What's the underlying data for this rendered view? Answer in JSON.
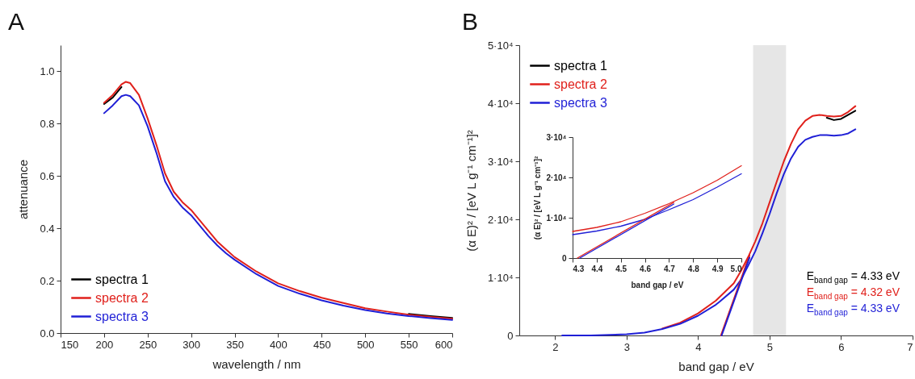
{
  "chart_data": [
    {
      "type": "line",
      "title": "A",
      "xlabel": "wavelength / nm",
      "ylabel": "attenuance",
      "xlim": [
        150,
        600
      ],
      "ylim": [
        0,
        1.1
      ],
      "xticks": [
        150,
        200,
        250,
        300,
        350,
        400,
        450,
        500,
        550,
        600
      ],
      "yticks": [
        {
          "value": 0,
          "label": "0.0"
        },
        0.2,
        0.4,
        0.6,
        0.8,
        {
          "value": 1,
          "label": "1.0"
        }
      ],
      "grid": false,
      "legend": "bottom left",
      "x": [
        200,
        210,
        220,
        225,
        230,
        240,
        250,
        260,
        270,
        280,
        290,
        300,
        310,
        320,
        330,
        340,
        350,
        375,
        400,
        425,
        450,
        475,
        500,
        525,
        550,
        575,
        600
      ],
      "series": [
        {
          "name": "spectra 1",
          "color": "#000000",
          "values": [
            0.875,
            0.9,
            0.94,
            null,
            null,
            null,
            null,
            null,
            null,
            null,
            null,
            null,
            null,
            null,
            null,
            null,
            null,
            null,
            null,
            null,
            null,
            null,
            null,
            null,
            0.073,
            0.065,
            0.058
          ]
        },
        {
          "name": "spectra 2",
          "color": "#e0201b",
          "values": [
            0.88,
            0.91,
            0.95,
            0.96,
            0.955,
            0.91,
            0.82,
            0.72,
            0.61,
            0.54,
            0.5,
            0.47,
            0.43,
            0.39,
            0.35,
            0.32,
            0.29,
            0.235,
            0.19,
            0.16,
            0.135,
            0.115,
            0.095,
            0.082,
            0.07,
            0.062,
            0.055
          ]
        },
        {
          "name": "spectra 3",
          "color": "#1f1fd6",
          "values": [
            0.84,
            0.87,
            0.905,
            0.91,
            0.905,
            0.87,
            0.79,
            0.69,
            0.58,
            0.52,
            0.48,
            0.45,
            0.41,
            0.37,
            0.335,
            0.305,
            0.28,
            0.225,
            0.18,
            0.15,
            0.125,
            0.105,
            0.088,
            0.075,
            0.065,
            0.057,
            0.05
          ]
        }
      ]
    },
    {
      "type": "line",
      "title": "B",
      "xlabel": "band gap / eV",
      "ylabel": "(α E)² / [eV L g⁻¹ cm⁻¹]²",
      "xlim": [
        1.5,
        7
      ],
      "ylim": [
        0,
        50000
      ],
      "xticks": [
        2,
        3,
        4,
        5,
        6,
        7
      ],
      "yticks": [
        0,
        {
          "value": 10000,
          "label": "1·10⁴"
        },
        {
          "value": 20000,
          "label": "2·10⁴"
        },
        {
          "value": 30000,
          "label": "3·10⁴"
        },
        {
          "value": 40000,
          "label": "4·10⁴"
        },
        {
          "value": 50000,
          "label": "5·10⁴"
        }
      ],
      "grid": false,
      "legend": "top left",
      "bands": [
        {
          "axis": "x",
          "from": 4.77,
          "to": 5.23,
          "color": "#e6e6e6"
        }
      ],
      "annotations": [
        "E$_{band gap}$ = 4.33 eV",
        "E$_{band gap}$ = 4.32 eV",
        "E$_{band gap}$ = 4.33 eV"
      ],
      "x": [
        2.1,
        2.5,
        3,
        3.25,
        3.5,
        3.75,
        4,
        4.25,
        4.3,
        4.5,
        4.6,
        4.7,
        4.8,
        4.9,
        5,
        5.1,
        5.2,
        5.3,
        5.4,
        5.5,
        5.6,
        5.7,
        5.8,
        5.9,
        6,
        6.1,
        6.2
      ],
      "series": [
        {
          "name": "spectra 1",
          "color": "#000000",
          "values": [
            null,
            null,
            null,
            null,
            null,
            null,
            null,
            null,
            null,
            null,
            null,
            null,
            null,
            null,
            null,
            null,
            null,
            null,
            null,
            null,
            null,
            null,
            37500,
            37100,
            37300,
            38000,
            38700
          ]
        },
        {
          "name": "spectra 2",
          "color": "#e0201b",
          "values": [
            null,
            null,
            null,
            null,
            1200,
            2200,
            3800,
            6000,
            6600,
            9000,
            11100,
            13500,
            16200,
            19300,
            22900,
            26500,
            30000,
            33000,
            35500,
            37000,
            37800,
            38000,
            37800,
            37700,
            37800,
            38500,
            39500
          ]
        },
        {
          "name": "spectra 3",
          "color": "#1f1fd6",
          "values": [
            0,
            0,
            200,
            500,
            1100,
            2000,
            3400,
            5300,
            5800,
            7900,
            9600,
            12000,
            14500,
            17600,
            20900,
            24500,
            27800,
            30500,
            32500,
            33700,
            34200,
            34500,
            34500,
            34400,
            34500,
            34800,
            35500
          ]
        },
        {
          "type": "line",
          "color": "#e0201b",
          "x": [
            4.32,
            4.72
          ],
          "values": [
            0,
            13800
          ]
        },
        {
          "type": "line",
          "color": "#1f1fd6",
          "x": [
            4.33,
            4.72
          ],
          "values": [
            0,
            13400
          ]
        }
      ]
    },
    {
      "type": "line",
      "xlabel": "band gap / eV",
      "ylabel": "(α E)² / [eV L g⁻¹ cm⁻¹]²",
      "xlim": [
        4.3,
        5.0
      ],
      "ylim": [
        0,
        30000
      ],
      "xticks": [
        4.3,
        4.4,
        4.5,
        4.6,
        4.7,
        4.8,
        4.9,
        {
          "value": 5,
          "label": "5.0"
        }
      ],
      "yticks": [
        0,
        {
          "value": 10000,
          "label": "1·10⁴"
        },
        {
          "value": 20000,
          "label": "2·10⁴"
        },
        {
          "value": 30000,
          "label": "3·10⁴"
        }
      ],
      "grid": false,
      "x": [
        4.3,
        4.4,
        4.5,
        4.6,
        4.7,
        4.8,
        4.9,
        5.0
      ],
      "series": [
        {
          "color": "#e0201b",
          "values": [
            6600,
            7600,
            9000,
            11100,
            13500,
            16200,
            19300,
            22900
          ]
        },
        {
          "color": "#1f1fd6",
          "values": [
            5800,
            6700,
            7900,
            9600,
            12000,
            14500,
            17600,
            20900
          ]
        },
        {
          "type": "line",
          "color": "#e0201b",
          "x": [
            4.32,
            4.72
          ],
          "values": [
            0,
            13800
          ]
        },
        {
          "type": "line",
          "color": "#1f1fd6",
          "x": [
            4.33,
            4.72
          ],
          "values": [
            0,
            13400
          ]
        }
      ]
    }
  ]
}
